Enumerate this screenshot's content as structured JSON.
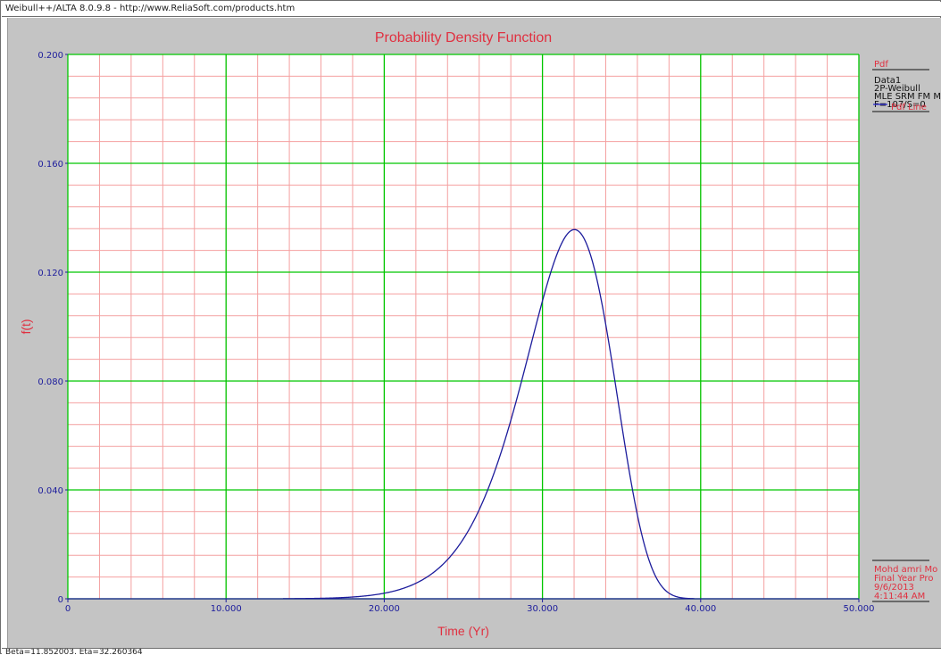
{
  "window": {
    "title": "Weibull++/ALTA 8.0.9.8 - http://www.ReliaSoft.com/products.htm",
    "status": "Beta=11.852003, Eta=32.260364"
  },
  "colors": {
    "panel_bg": "#c4c4c4",
    "plot_bg": "#ffffff",
    "major_grid": "#00c800",
    "minor_grid": "#f4a0a0",
    "curve": "#1c1c9c",
    "title": "#e03040",
    "axis_label": "#e03040",
    "tick_label": "#1c1c9c",
    "legend_red": "#e03040",
    "legend_black": "#111111",
    "legend_blue": "#2a2ad0"
  },
  "chart_data": {
    "type": "line",
    "title": "Probability Density Function",
    "xlabel": "Time (Yr)",
    "ylabel": "f(t)",
    "xlim": [
      0,
      50
    ],
    "ylim": [
      0,
      0.2
    ],
    "x_ticks": [
      0,
      10,
      20,
      30,
      40,
      50
    ],
    "x_tick_labels": [
      "0",
      "10.000",
      "20.000",
      "30.000",
      "40.000",
      "50.000"
    ],
    "y_ticks": [
      0,
      0.04,
      0.08,
      0.12,
      0.16,
      0.2
    ],
    "y_tick_labels": [
      "0",
      "0.040",
      "0.080",
      "0.120",
      "0.160",
      "0.200"
    ],
    "grid": true,
    "legend_position": "right",
    "series": [
      {
        "name": "Pdf Line",
        "distribution": "2P-Weibull",
        "beta": 11.852003,
        "eta": 32.260364,
        "x_range": [
          13.6,
          39.6
        ]
      }
    ]
  },
  "legend": {
    "header": "Pdf",
    "lines": [
      "Data1",
      "2P-Weibull",
      "MLE SRM FM ME",
      "F=107/S=0"
    ],
    "series_label": "Pdf Line"
  },
  "info": {
    "lines": [
      "Mohd amri Mo",
      "Final Year Pro",
      "9/6/2013",
      "4:11:44 AM"
    ]
  }
}
